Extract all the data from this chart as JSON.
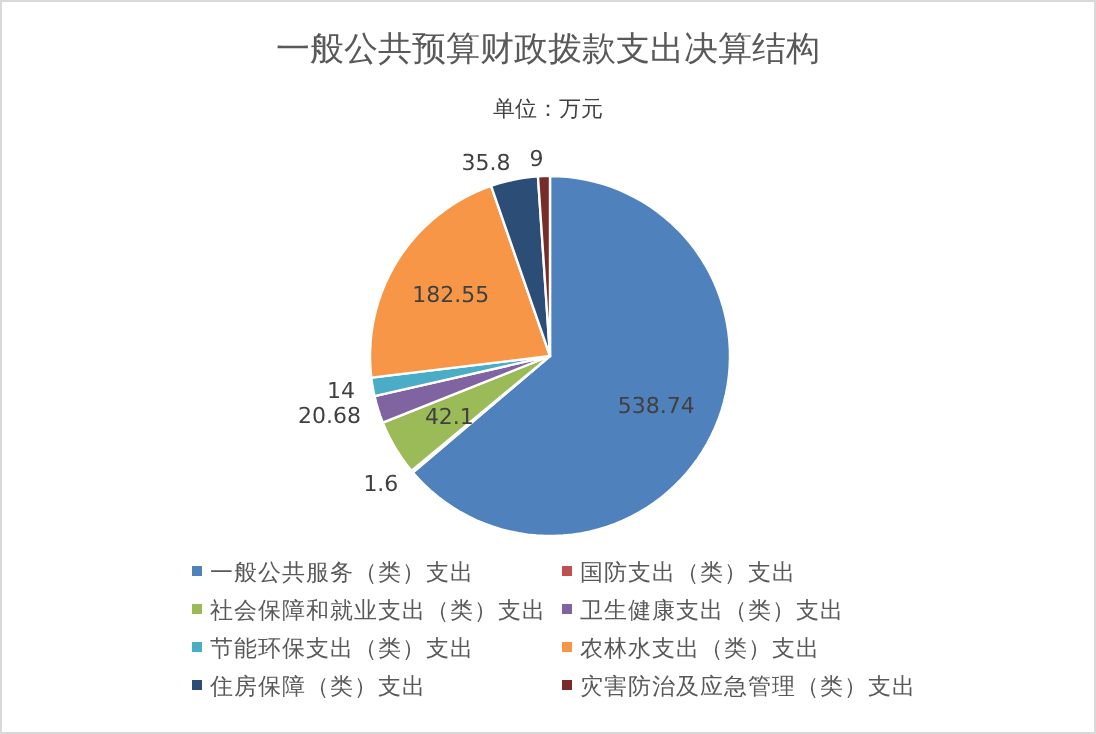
{
  "chart_data": {
    "type": "pie",
    "title": "一般公共预算财政拨款支出决算结构",
    "subtitle": "单位：万元",
    "categories": [
      "一般公共服务（类）支出",
      "国防支出（类）支出",
      "社会保障和就业支出（类）支出",
      "卫生健康支出（类）支出",
      "节能环保支出（类）支出",
      "农林水支出（类）支出",
      "住房保障（类）支出",
      "灾害防治及应急管理（类）支出"
    ],
    "values": [
      538.74,
      1.6,
      42.1,
      20.68,
      14,
      182.55,
      35.8,
      9
    ],
    "colors": [
      "#4f81bd",
      "#c0504d",
      "#9bbb59",
      "#8064a2",
      "#4bacc6",
      "#f79646",
      "#2c4d75",
      "#772c2a"
    ],
    "data_labels": true,
    "legend": "bottom"
  }
}
